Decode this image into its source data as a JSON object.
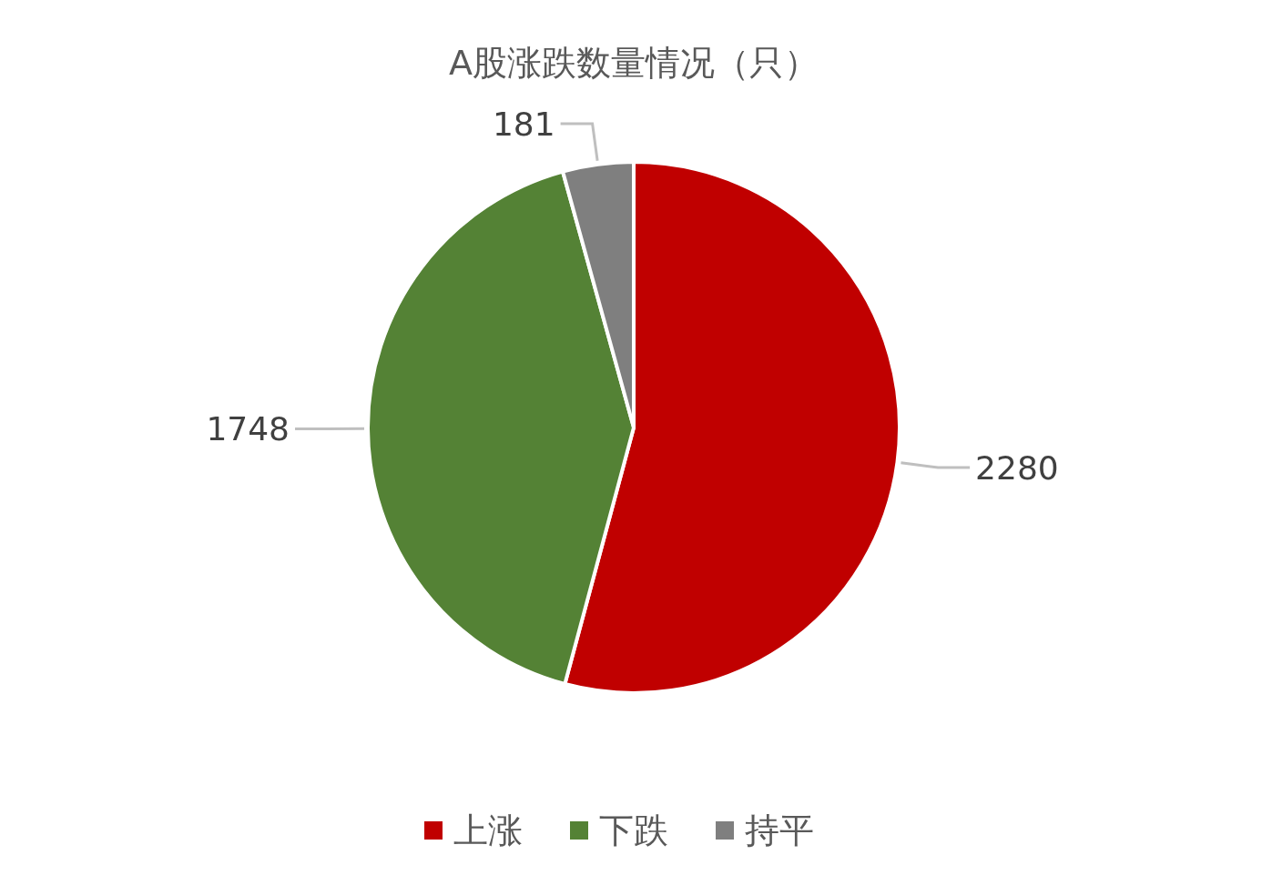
{
  "chart_data": {
    "type": "pie",
    "title": "A股涨跌数量情况（只）",
    "categories": [
      "上涨",
      "下跌",
      "持平"
    ],
    "values": [
      2280,
      1748,
      181
    ],
    "colors": [
      "#c00000",
      "#548235",
      "#7f7f7f"
    ],
    "data_labels": true,
    "legend": "bottom"
  }
}
